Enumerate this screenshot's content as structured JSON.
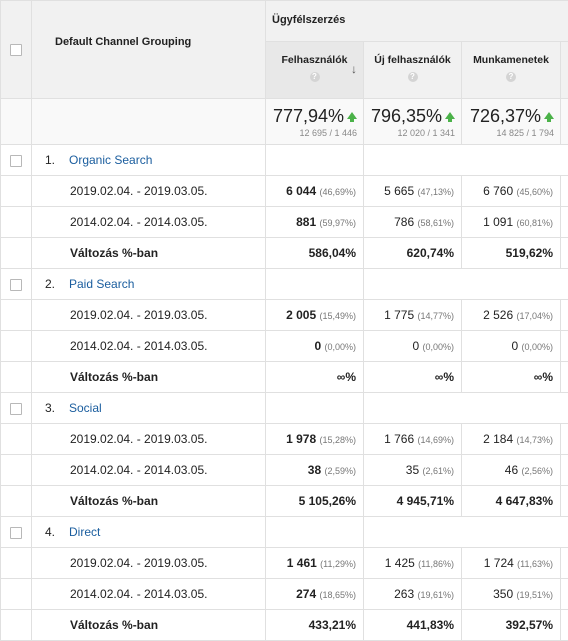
{
  "header": {
    "dimension_label": "Default Channel Grouping",
    "group_label": "Ügyfélszerzés",
    "columns": [
      {
        "label": "Felhasználók",
        "help": "?"
      },
      {
        "label": "Új felhasználók",
        "help": "?"
      },
      {
        "label": "Munkamenetek",
        "help": "?"
      }
    ]
  },
  "totals": [
    {
      "value": "777,94%",
      "sub": "12 695 / 1 446"
    },
    {
      "value": "796,35%",
      "sub": "12 020 / 1 341"
    },
    {
      "value": "726,37%",
      "sub": "14 825 / 1 794"
    }
  ],
  "groups": [
    {
      "num": "1.",
      "name": "Organic Search",
      "rows": [
        {
          "label": "2019.02.04. - 2019.03.05.",
          "c1": "6 044",
          "c1p": "(46,69%)",
          "c2": "5 665",
          "c2p": "(47,13%)",
          "c3": "6 760",
          "c3p": "(45,60%)"
        },
        {
          "label": "2014.02.04. - 2014.03.05.",
          "c1": "881",
          "c1p": "(59,97%)",
          "c2": "786",
          "c2p": "(58,61%)",
          "c3": "1 091",
          "c3p": "(60,81%)"
        }
      ],
      "change": {
        "label": "Változás %-ban",
        "c1": "586,04%",
        "c2": "620,74%",
        "c3": "519,62%"
      }
    },
    {
      "num": "2.",
      "name": "Paid Search",
      "rows": [
        {
          "label": "2019.02.04. - 2019.03.05.",
          "c1": "2 005",
          "c1p": "(15,49%)",
          "c2": "1 775",
          "c2p": "(14,77%)",
          "c3": "2 526",
          "c3p": "(17,04%)"
        },
        {
          "label": "2014.02.04. - 2014.03.05.",
          "c1": "0",
          "c1p": "(0,00%)",
          "c2": "0",
          "c2p": "(0,00%)",
          "c3": "0",
          "c3p": "(0,00%)"
        }
      ],
      "change": {
        "label": "Változás %-ban",
        "c1": "∞%",
        "c2": "∞%",
        "c3": "∞%"
      }
    },
    {
      "num": "3.",
      "name": "Social",
      "rows": [
        {
          "label": "2019.02.04. - 2019.03.05.",
          "c1": "1 978",
          "c1p": "(15,28%)",
          "c2": "1 766",
          "c2p": "(14,69%)",
          "c3": "2 184",
          "c3p": "(14,73%)"
        },
        {
          "label": "2014.02.04. - 2014.03.05.",
          "c1": "38",
          "c1p": "(2,59%)",
          "c2": "35",
          "c2p": "(2,61%)",
          "c3": "46",
          "c3p": "(2,56%)"
        }
      ],
      "change": {
        "label": "Változás %-ban",
        "c1": "5 105,26%",
        "c2": "4 945,71%",
        "c3": "4 647,83%"
      }
    },
    {
      "num": "4.",
      "name": "Direct",
      "rows": [
        {
          "label": "2019.02.04. - 2019.03.05.",
          "c1": "1 461",
          "c1p": "(11,29%)",
          "c2": "1 425",
          "c2p": "(11,86%)",
          "c3": "1 724",
          "c3p": "(11,63%)"
        },
        {
          "label": "2014.02.04. - 2014.03.05.",
          "c1": "274",
          "c1p": "(18,65%)",
          "c2": "263",
          "c2p": "(19,61%)",
          "c3": "350",
          "c3p": "(19,51%)"
        }
      ],
      "change": {
        "label": "Változás %-ban",
        "c1": "433,21%",
        "c2": "441,83%",
        "c3": "392,57%"
      }
    }
  ],
  "colors": {
    "link": "#1a5d9e",
    "up_arrow": "#4bb249",
    "header_bg": "#f1f1f1"
  }
}
